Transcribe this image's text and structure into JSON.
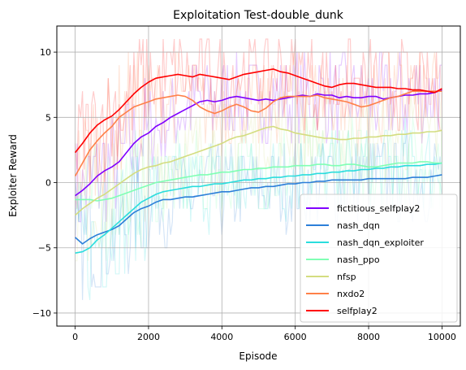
{
  "chart_data": {
    "type": "line",
    "title": "Exploitation Test-double_dunk",
    "xlabel": "Episode",
    "ylabel": "Exploiter Reward",
    "xlim": [
      -500,
      10500
    ],
    "ylim": [
      -11,
      12
    ],
    "xticks": [
      0,
      2000,
      4000,
      6000,
      8000,
      10000
    ],
    "xtick_labels": [
      "0",
      "2000",
      "4000",
      "6000",
      "8000",
      "10000"
    ],
    "yticks": [
      -10,
      -5,
      0,
      5,
      10
    ],
    "ytick_labels": [
      "−10",
      "−5",
      "0",
      "5",
      "10"
    ],
    "grid": true,
    "legend_position": "lower right",
    "series": [
      {
        "name": "fictitious_selfplay2",
        "color": "#8000ff",
        "x": [
          0,
          200,
          400,
          600,
          800,
          1000,
          1200,
          1400,
          1600,
          1800,
          2000,
          2200,
          2400,
          2600,
          2800,
          3000,
          3200,
          3400,
          3600,
          3800,
          4000,
          4200,
          4400,
          4600,
          4800,
          5000,
          5200,
          5400,
          5600,
          5800,
          6000,
          6200,
          6400,
          6600,
          6800,
          7000,
          7200,
          7400,
          7600,
          7800,
          8000,
          8200,
          8400,
          8600,
          8800,
          9000,
          9200,
          9400,
          9600,
          9800,
          10000
        ],
        "y": [
          -1.0,
          -0.6,
          -0.1,
          0.5,
          0.9,
          1.2,
          1.6,
          2.3,
          3.0,
          3.5,
          3.8,
          4.3,
          4.6,
          5.0,
          5.3,
          5.6,
          5.9,
          6.2,
          6.3,
          6.2,
          6.3,
          6.5,
          6.6,
          6.5,
          6.4,
          6.3,
          6.4,
          6.3,
          6.4,
          6.5,
          6.6,
          6.7,
          6.6,
          6.8,
          6.7,
          6.7,
          6.5,
          6.6,
          6.5,
          6.5,
          6.6,
          6.6,
          6.4,
          6.5,
          6.6,
          6.7,
          6.7,
          6.8,
          6.8,
          6.9,
          7.1
        ]
      },
      {
        "name": "nash_dqn",
        "color": "#2c7fd9",
        "x": [
          0,
          200,
          400,
          600,
          800,
          1000,
          1200,
          1400,
          1600,
          1800,
          2000,
          2200,
          2400,
          2600,
          2800,
          3000,
          3200,
          3400,
          3600,
          3800,
          4000,
          4200,
          4400,
          4600,
          4800,
          5000,
          5200,
          5400,
          5600,
          5800,
          6000,
          6200,
          6400,
          6600,
          6800,
          7000,
          7200,
          7400,
          7600,
          7800,
          8000,
          8200,
          8400,
          8600,
          8800,
          9000,
          9200,
          9400,
          9600,
          9800,
          10000
        ],
        "y": [
          -4.2,
          -4.7,
          -4.3,
          -4.0,
          -3.8,
          -3.6,
          -3.3,
          -2.8,
          -2.3,
          -2.0,
          -1.8,
          -1.5,
          -1.3,
          -1.3,
          -1.2,
          -1.1,
          -1.1,
          -1.0,
          -0.9,
          -0.8,
          -0.7,
          -0.7,
          -0.6,
          -0.5,
          -0.4,
          -0.4,
          -0.3,
          -0.3,
          -0.2,
          -0.1,
          -0.1,
          0.0,
          0.0,
          0.1,
          0.1,
          0.2,
          0.2,
          0.2,
          0.2,
          0.2,
          0.3,
          0.3,
          0.3,
          0.3,
          0.3,
          0.3,
          0.4,
          0.4,
          0.4,
          0.5,
          0.6
        ]
      },
      {
        "name": "nash_dqn_exploiter",
        "color": "#2adddd",
        "x": [
          0,
          200,
          400,
          600,
          800,
          1000,
          1200,
          1400,
          1600,
          1800,
          2000,
          2200,
          2400,
          2600,
          2800,
          3000,
          3200,
          3400,
          3600,
          3800,
          4000,
          4200,
          4400,
          4600,
          4800,
          5000,
          5200,
          5400,
          5600,
          5800,
          6000,
          6200,
          6400,
          6600,
          6800,
          7000,
          7200,
          7400,
          7600,
          7800,
          8000,
          8200,
          8400,
          8600,
          8800,
          9000,
          9200,
          9400,
          9600,
          9800,
          10000
        ],
        "y": [
          -5.4,
          -5.3,
          -5.0,
          -4.4,
          -4.0,
          -3.5,
          -3.0,
          -2.5,
          -2.0,
          -1.5,
          -1.2,
          -0.9,
          -0.7,
          -0.6,
          -0.5,
          -0.4,
          -0.3,
          -0.3,
          -0.2,
          -0.1,
          -0.1,
          0.0,
          0.1,
          0.2,
          0.2,
          0.3,
          0.3,
          0.4,
          0.4,
          0.5,
          0.5,
          0.6,
          0.6,
          0.7,
          0.7,
          0.8,
          0.8,
          0.9,
          0.9,
          1.0,
          1.0,
          1.1,
          1.1,
          1.2,
          1.2,
          1.3,
          1.3,
          1.3,
          1.4,
          1.4,
          1.5
        ]
      },
      {
        "name": "nash_ppo",
        "color": "#80ffb4",
        "x": [
          0,
          200,
          400,
          600,
          800,
          1000,
          1200,
          1400,
          1600,
          1800,
          2000,
          2200,
          2400,
          2600,
          2800,
          3000,
          3200,
          3400,
          3600,
          3800,
          4000,
          4200,
          4400,
          4600,
          4800,
          5000,
          5200,
          5400,
          5600,
          5800,
          6000,
          6200,
          6400,
          6600,
          6800,
          7000,
          7200,
          7400,
          7600,
          7800,
          8000,
          8200,
          8400,
          8600,
          8800,
          9000,
          9200,
          9400,
          9600,
          9800,
          10000
        ],
        "y": [
          -1.3,
          -1.3,
          -1.3,
          -1.4,
          -1.3,
          -1.2,
          -1.0,
          -0.8,
          -0.6,
          -0.4,
          -0.2,
          0.0,
          0.1,
          0.2,
          0.3,
          0.4,
          0.5,
          0.6,
          0.6,
          0.7,
          0.8,
          0.8,
          0.9,
          1.0,
          1.0,
          1.1,
          1.1,
          1.2,
          1.2,
          1.2,
          1.3,
          1.3,
          1.3,
          1.4,
          1.4,
          1.3,
          1.3,
          1.4,
          1.4,
          1.3,
          1.2,
          1.2,
          1.3,
          1.4,
          1.5,
          1.5,
          1.5,
          1.6,
          1.6,
          1.5,
          1.5
        ]
      },
      {
        "name": "nfsp",
        "color": "#d4dd80",
        "x": [
          0,
          200,
          400,
          600,
          800,
          1000,
          1200,
          1400,
          1600,
          1800,
          2000,
          2200,
          2400,
          2600,
          2800,
          3000,
          3200,
          3400,
          3600,
          3800,
          4000,
          4200,
          4400,
          4600,
          4800,
          5000,
          5200,
          5400,
          5600,
          5800,
          6000,
          6200,
          6400,
          6600,
          6800,
          7000,
          7200,
          7400,
          7600,
          7800,
          8000,
          8200,
          8400,
          8600,
          8800,
          9000,
          9200,
          9400,
          9600,
          9800,
          10000
        ],
        "y": [
          -2.5,
          -2.0,
          -1.6,
          -1.2,
          -0.9,
          -0.5,
          -0.1,
          0.3,
          0.7,
          1.0,
          1.2,
          1.3,
          1.5,
          1.6,
          1.8,
          2.0,
          2.2,
          2.4,
          2.6,
          2.8,
          3.0,
          3.3,
          3.5,
          3.6,
          3.8,
          4.0,
          4.2,
          4.3,
          4.1,
          4.0,
          3.8,
          3.7,
          3.6,
          3.5,
          3.4,
          3.4,
          3.3,
          3.3,
          3.4,
          3.4,
          3.5,
          3.5,
          3.6,
          3.6,
          3.7,
          3.7,
          3.8,
          3.8,
          3.9,
          3.9,
          4.0
        ]
      },
      {
        "name": "nxdo2",
        "color": "#ff8048",
        "x": [
          0,
          200,
          400,
          600,
          800,
          1000,
          1200,
          1400,
          1600,
          1800,
          2000,
          2200,
          2400,
          2600,
          2800,
          3000,
          3200,
          3400,
          3600,
          3800,
          4000,
          4200,
          4400,
          4600,
          4800,
          5000,
          5200,
          5400,
          5600,
          5800,
          6000,
          6200,
          6400,
          6600,
          6800,
          7000,
          7200,
          7400,
          7600,
          7800,
          8000,
          8200,
          8400,
          8600,
          8800,
          9000,
          9200,
          9400,
          9600,
          9800,
          10000
        ],
        "y": [
          0.5,
          1.5,
          2.5,
          3.2,
          3.8,
          4.3,
          5.0,
          5.4,
          5.8,
          6.0,
          6.2,
          6.4,
          6.5,
          6.6,
          6.7,
          6.6,
          6.3,
          5.8,
          5.5,
          5.3,
          5.5,
          5.8,
          6.0,
          5.8,
          5.5,
          5.4,
          5.7,
          6.2,
          6.5,
          6.6,
          6.6,
          6.6,
          6.6,
          6.7,
          6.5,
          6.4,
          6.3,
          6.2,
          6.0,
          5.8,
          5.9,
          6.1,
          6.3,
          6.5,
          6.6,
          6.8,
          7.0,
          7.0,
          7.0,
          7.0,
          7.0
        ]
      },
      {
        "name": "selfplay2",
        "color": "#ff0000",
        "x": [
          0,
          200,
          400,
          600,
          800,
          1000,
          1200,
          1400,
          1600,
          1800,
          2000,
          2200,
          2400,
          2600,
          2800,
          3000,
          3200,
          3400,
          3600,
          3800,
          4000,
          4200,
          4400,
          4600,
          4800,
          5000,
          5200,
          5400,
          5600,
          5800,
          6000,
          6200,
          6400,
          6600,
          6800,
          7000,
          7200,
          7400,
          7600,
          7800,
          8000,
          8200,
          8400,
          8600,
          8800,
          9000,
          9200,
          9400,
          9600,
          9800,
          10000
        ],
        "y": [
          2.3,
          3.0,
          3.8,
          4.4,
          4.8,
          5.1,
          5.6,
          6.2,
          6.8,
          7.3,
          7.7,
          8.0,
          8.1,
          8.2,
          8.3,
          8.2,
          8.1,
          8.3,
          8.2,
          8.1,
          8.0,
          7.9,
          8.1,
          8.3,
          8.4,
          8.5,
          8.6,
          8.7,
          8.5,
          8.4,
          8.2,
          8.0,
          7.8,
          7.6,
          7.4,
          7.3,
          7.5,
          7.6,
          7.6,
          7.5,
          7.4,
          7.3,
          7.3,
          7.3,
          7.2,
          7.2,
          7.1,
          7.1,
          7.0,
          6.9,
          7.2
        ]
      }
    ]
  }
}
